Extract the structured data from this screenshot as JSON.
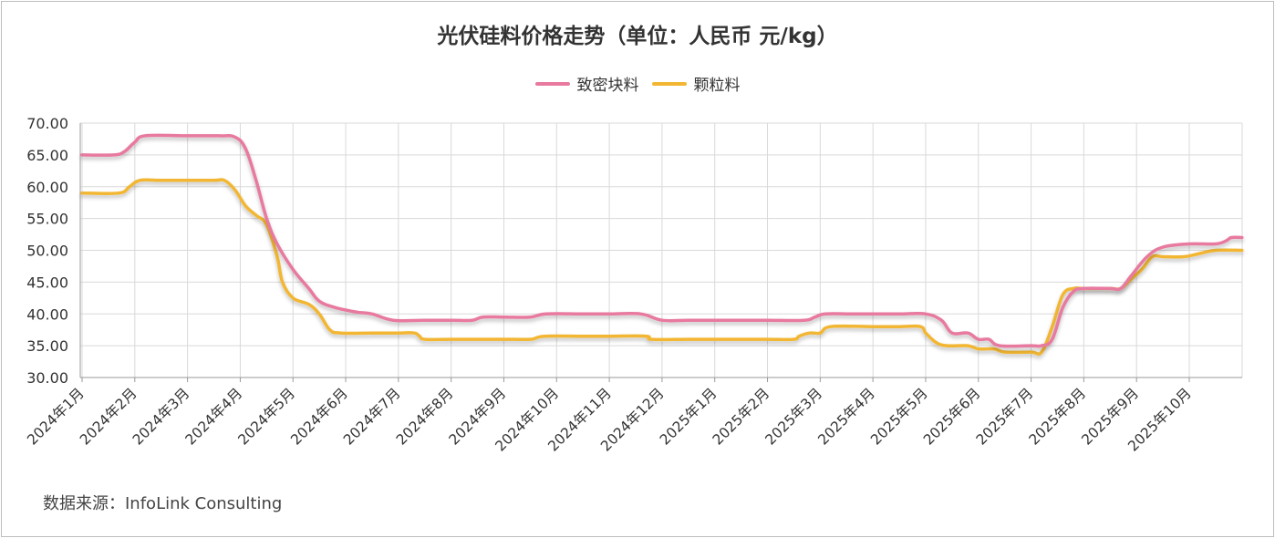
{
  "chart_data": {
    "type": "line",
    "title": "光伏硅料价格走势（单位：人民币 元/kg）",
    "source": "数据来源：InfoLink Consulting",
    "ylim": [
      30,
      70
    ],
    "yticks": [
      "30.00",
      "35.00",
      "40.00",
      "45.00",
      "50.00",
      "55.00",
      "60.00",
      "65.00",
      "70.00"
    ],
    "categories": [
      "2024年1月",
      "2024年2月",
      "2024年3月",
      "2024年4月",
      "2024年5月",
      "2024年6月",
      "2024年7月",
      "2024年8月",
      "2024年9月",
      "2024年10月",
      "2024年11月",
      "2024年12月",
      "2025年1月",
      "2025年2月",
      "2025年3月",
      "2025年4月",
      "2025年5月",
      "2025年6月",
      "2025年7月",
      "2025年8月",
      "2025年9月",
      "2025年10月"
    ],
    "legend_position": "top-center",
    "grid": true,
    "series": [
      {
        "name": "致密块料",
        "color": "#e8799f",
        "points": [
          [
            0,
            65
          ],
          [
            0.6,
            65
          ],
          [
            0.8,
            65.5
          ],
          [
            1.0,
            67
          ],
          [
            1.2,
            68
          ],
          [
            2,
            68
          ],
          [
            2.6,
            68
          ],
          [
            2.9,
            67.8
          ],
          [
            3.1,
            66
          ],
          [
            3.3,
            61
          ],
          [
            3.5,
            55
          ],
          [
            3.7,
            51
          ],
          [
            4,
            47
          ],
          [
            4.3,
            44
          ],
          [
            4.5,
            42
          ],
          [
            4.8,
            41
          ],
          [
            5.2,
            40.3
          ],
          [
            5.5,
            40
          ],
          [
            5.9,
            39
          ],
          [
            6.5,
            39
          ],
          [
            7,
            39
          ],
          [
            7.4,
            39
          ],
          [
            7.6,
            39.5
          ],
          [
            8,
            39.5
          ],
          [
            8.5,
            39.5
          ],
          [
            8.8,
            40
          ],
          [
            9.5,
            40
          ],
          [
            10,
            40
          ],
          [
            10.6,
            40
          ],
          [
            11,
            39
          ],
          [
            11.5,
            39
          ],
          [
            12,
            39
          ],
          [
            12.5,
            39
          ],
          [
            13,
            39
          ],
          [
            13.7,
            39
          ],
          [
            13.9,
            39.5
          ],
          [
            14.1,
            40
          ],
          [
            14.6,
            40
          ],
          [
            15,
            40
          ],
          [
            15.5,
            40
          ],
          [
            16,
            40
          ],
          [
            16.3,
            39
          ],
          [
            16.5,
            37
          ],
          [
            16.8,
            37
          ],
          [
            17,
            36
          ],
          [
            17.2,
            36
          ],
          [
            17.4,
            35
          ],
          [
            18,
            35
          ],
          [
            18.2,
            35
          ],
          [
            18.4,
            36
          ],
          [
            18.6,
            41
          ],
          [
            18.8,
            43.5
          ],
          [
            19,
            44
          ],
          [
            19.5,
            44
          ],
          [
            19.7,
            44
          ],
          [
            19.9,
            46
          ],
          [
            20.2,
            49
          ],
          [
            20.5,
            50.5
          ],
          [
            21,
            51
          ],
          [
            21.5,
            51
          ],
          [
            21.7,
            51.5
          ],
          [
            21.8,
            52
          ],
          [
            22,
            52
          ]
        ]
      },
      {
        "name": "颗粒料",
        "color": "#f2b632",
        "points": [
          [
            0,
            59
          ],
          [
            0.7,
            59
          ],
          [
            0.9,
            60
          ],
          [
            1.1,
            61
          ],
          [
            1.5,
            61
          ],
          [
            2,
            61
          ],
          [
            2.5,
            61
          ],
          [
            2.7,
            61
          ],
          [
            2.9,
            59.5
          ],
          [
            3.1,
            57
          ],
          [
            3.3,
            55.5
          ],
          [
            3.5,
            54
          ],
          [
            3.7,
            49
          ],
          [
            3.8,
            45
          ],
          [
            4,
            42.5
          ],
          [
            4.3,
            41.5
          ],
          [
            4.5,
            40
          ],
          [
            4.7,
            37.5
          ],
          [
            4.9,
            37
          ],
          [
            5.5,
            37
          ],
          [
            6,
            37
          ],
          [
            6.3,
            37
          ],
          [
            6.4,
            36.5
          ],
          [
            6.5,
            36
          ],
          [
            7,
            36
          ],
          [
            7.5,
            36
          ],
          [
            8,
            36
          ],
          [
            8.5,
            36
          ],
          [
            8.6,
            36.2
          ],
          [
            8.8,
            36.5
          ],
          [
            9.5,
            36.5
          ],
          [
            10,
            36.5
          ],
          [
            10.7,
            36.5
          ],
          [
            10.8,
            36
          ],
          [
            11.5,
            36
          ],
          [
            12,
            36
          ],
          [
            12.5,
            36
          ],
          [
            13,
            36
          ],
          [
            13.5,
            36
          ],
          [
            13.6,
            36.5
          ],
          [
            13.8,
            37
          ],
          [
            14,
            37
          ],
          [
            14.2,
            38
          ],
          [
            15,
            38
          ],
          [
            15.5,
            38
          ],
          [
            15.9,
            38
          ],
          [
            16,
            37
          ],
          [
            16.2,
            35.5
          ],
          [
            16.4,
            35
          ],
          [
            16.8,
            35
          ],
          [
            17,
            34.5
          ],
          [
            17.3,
            34.5
          ],
          [
            17.5,
            34
          ],
          [
            18,
            34
          ],
          [
            18.2,
            34
          ],
          [
            18.4,
            38
          ],
          [
            18.6,
            43
          ],
          [
            18.8,
            44
          ],
          [
            19,
            44
          ],
          [
            19.5,
            44
          ],
          [
            19.7,
            44
          ],
          [
            19.9,
            45.5
          ],
          [
            20.1,
            47
          ],
          [
            20.3,
            49
          ],
          [
            20.5,
            49
          ],
          [
            20.9,
            49
          ],
          [
            21.2,
            49.5
          ],
          [
            21.5,
            50
          ],
          [
            22,
            50
          ]
        ]
      }
    ]
  }
}
